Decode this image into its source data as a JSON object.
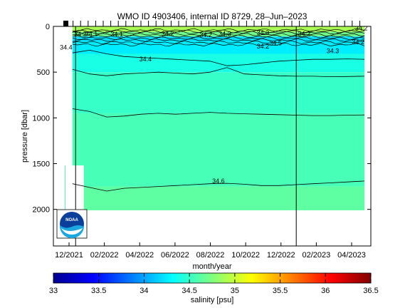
{
  "chart_data": {
    "type": "heatmap",
    "title": "WMO ID 4903406, internal ID 8729, 28–Jun–2023",
    "xlabel": "month/year",
    "ylabel": "pressure [dbar]",
    "x_tick_labels": [
      "12/2021",
      "02/2022",
      "04/2022",
      "06/2022",
      "08/2022",
      "10/2022",
      "12/2022",
      "02/2023",
      "04/2023"
    ],
    "y_tick_labels": [
      "0",
      "500",
      "1000",
      "1500",
      "2000"
    ],
    "y_ticks": [
      0,
      500,
      1000,
      1500,
      2000
    ],
    "ylim": [
      2400,
      0
    ],
    "colorbar": {
      "label": "salinity [psu]",
      "ticks": [
        33,
        33.5,
        34,
        34.5,
        35,
        35.5,
        36,
        36.5
      ],
      "tick_labels": [
        "33",
        "33.5",
        "34",
        "34.5",
        "35",
        "35.5",
        "36",
        "36.5"
      ],
      "range": [
        33,
        36.5
      ],
      "colormap": "jet"
    },
    "contour_labels": [
      {
        "text": "34.2",
        "x": 0.085,
        "p": 85
      },
      {
        "text": "34.1",
        "x": 0.12,
        "p": 80
      },
      {
        "text": "34.1",
        "x": 0.2,
        "p": 85
      },
      {
        "text": "34.2",
        "x": 0.36,
        "p": 80
      },
      {
        "text": "34.3",
        "x": 0.54,
        "p": 80
      },
      {
        "text": "34.3",
        "x": 0.66,
        "p": 70
      },
      {
        "text": "34.2",
        "x": 0.66,
        "p": 220
      },
      {
        "text": "34.2",
        "x": 0.48,
        "p": 95
      },
      {
        "text": "34.2",
        "x": 0.79,
        "p": 80
      },
      {
        "text": "34.3",
        "x": 0.88,
        "p": 270
      },
      {
        "text": "34.2",
        "x": 0.96,
        "p": 170
      },
      {
        "text": "34.2",
        "x": 0.97,
        "p": 20
      },
      {
        "text": "34.4",
        "x": 0.04,
        "p": 230
      },
      {
        "text": "34.4",
        "x": 0.29,
        "p": 360
      },
      {
        "text": "34.6",
        "x": 0.52,
        "p": 1690
      },
      {
        "text": "34.5",
        "x": 0.7,
        "p": 185
      }
    ],
    "contour_levels": [
      {
        "value": 34.4,
        "p": [
          290,
          260,
          300,
          330,
          340,
          350,
          360,
          370,
          380,
          430,
          420,
          400,
          380,
          370,
          360,
          360,
          355,
          360
        ]
      },
      {
        "value": 34.5,
        "p": [
          470,
          520,
          540,
          520,
          510,
          500,
          510,
          520,
          500,
          450,
          520,
          530,
          540,
          545,
          545,
          550,
          548,
          545
        ]
      },
      {
        "value": 34.55,
        "p": [
          900,
          930,
          990,
          980,
          960,
          950,
          960,
          950,
          940,
          950,
          955,
          960,
          965,
          970,
          975,
          975,
          970,
          968
        ]
      },
      {
        "value": 34.6,
        "p": [
          1720,
          1760,
          1800,
          1770,
          1760,
          1750,
          1740,
          1730,
          1720,
          1715,
          1725,
          1740,
          1740,
          1730,
          1720,
          1710,
          1700,
          1690
        ]
      }
    ],
    "vertical_lines_x": [
      0.07,
      0.765
    ],
    "colored_layers": [
      {
        "p_top": 0,
        "p_bot": 60,
        "salinity": 34.9
      },
      {
        "p_top": 60,
        "p_bot": 110,
        "salinity": 34.7
      },
      {
        "p_top": 110,
        "p_bot": 160,
        "salinity": 34.2
      },
      {
        "p_top": 160,
        "p_bot": 300,
        "salinity": 34.25
      },
      {
        "p_top": 300,
        "p_bot": 500,
        "salinity": 34.4
      },
      {
        "p_top": 500,
        "p_bot": 950,
        "salinity": 34.5
      },
      {
        "p_top": 950,
        "p_bot": 1750,
        "salinity": 34.56
      },
      {
        "p_top": 1750,
        "p_bot": 2010,
        "salinity": 34.63
      }
    ],
    "data_extent": {
      "p_max": 2010,
      "start_x": 0.06,
      "end_x": 0.98,
      "early_p_max": 1520
    }
  },
  "logo": {
    "text": "NOAA"
  }
}
